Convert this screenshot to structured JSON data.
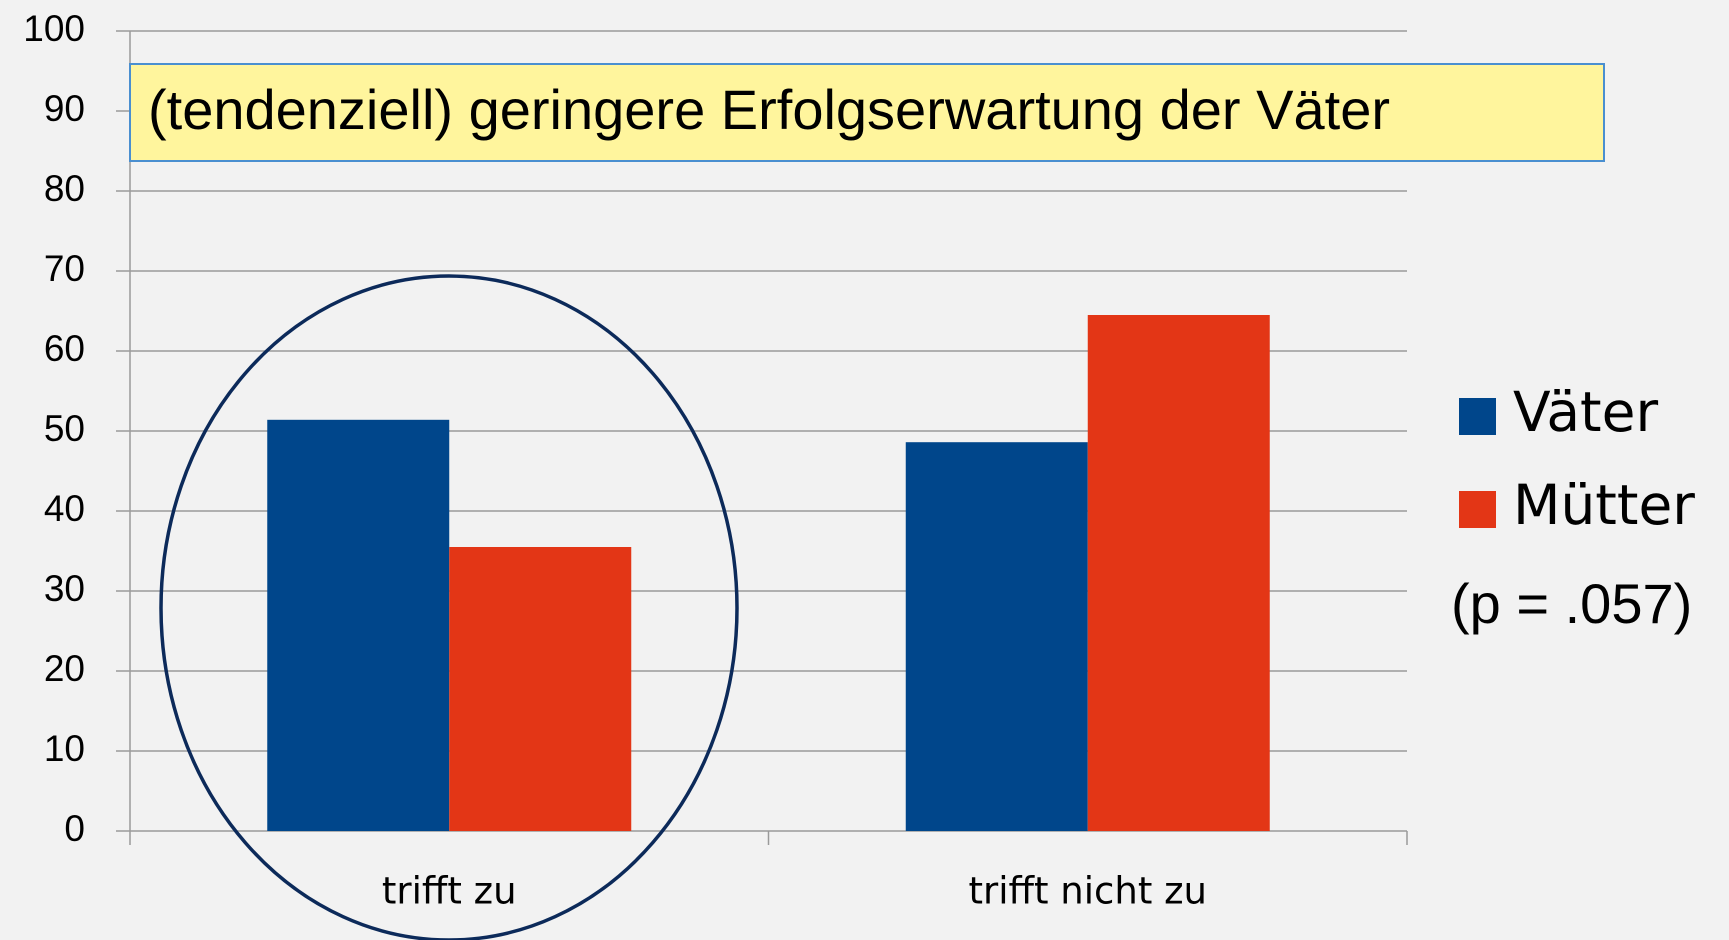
{
  "chart_data": {
    "type": "bar",
    "title": "(tendenziell) geringere Erfolgserwartung der Väter",
    "note": "(p = .057)",
    "categories": [
      "trifft zu",
      "trifft nicht zu"
    ],
    "series": [
      {
        "name": "Väter",
        "color": "#00468b",
        "values": [
          51.4,
          48.6
        ]
      },
      {
        "name": "Mütter",
        "color": "#e33616",
        "values": [
          35.5,
          64.5
        ]
      }
    ],
    "ylim": [
      0,
      100
    ],
    "yticks": [
      0,
      10,
      20,
      30,
      40,
      50,
      60,
      70,
      80,
      90,
      100
    ],
    "grid": true,
    "legend": "right"
  }
}
